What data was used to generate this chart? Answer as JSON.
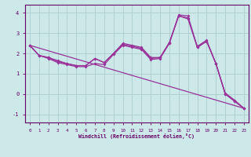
{
  "xlabel": "Windchill (Refroidissement éolien,°C)",
  "bg_color": "#cce8e8",
  "grid_color": "#aacccc",
  "line_color": "#993399",
  "spine_color": "#660066",
  "xlim": [
    -0.5,
    23.5
  ],
  "ylim": [
    -1.4,
    4.4
  ],
  "xticks": [
    0,
    1,
    2,
    3,
    4,
    5,
    6,
    7,
    8,
    9,
    10,
    11,
    12,
    13,
    14,
    15,
    16,
    17,
    18,
    19,
    20,
    21,
    22,
    23
  ],
  "yticks": [
    -1,
    0,
    1,
    2,
    3,
    4
  ],
  "line1_y": [
    2.4,
    1.9,
    1.8,
    1.65,
    1.5,
    1.4,
    1.4,
    1.75,
    1.55,
    2.0,
    2.5,
    2.4,
    2.3,
    1.8,
    1.8,
    2.5,
    3.9,
    3.85,
    2.3,
    2.6,
    1.5,
    0.05,
    -0.3,
    -0.7
  ],
  "line2_y": [
    2.4,
    1.9,
    1.8,
    1.6,
    1.5,
    1.4,
    1.4,
    1.75,
    1.55,
    2.0,
    2.45,
    2.35,
    2.25,
    1.75,
    1.8,
    2.55,
    3.85,
    3.75,
    2.35,
    2.65,
    1.5,
    0.0,
    -0.35,
    -0.7
  ],
  "line3_y": [
    2.4,
    1.9,
    1.75,
    1.55,
    1.45,
    1.35,
    1.35,
    1.5,
    1.45,
    1.95,
    2.4,
    2.3,
    2.2,
    1.7,
    1.75,
    2.5,
    3.85,
    3.7,
    2.3,
    2.6,
    1.5,
    0.0,
    -0.35,
    -0.7
  ],
  "regline_x": [
    0,
    23
  ],
  "regline_y": [
    2.4,
    -0.7
  ]
}
